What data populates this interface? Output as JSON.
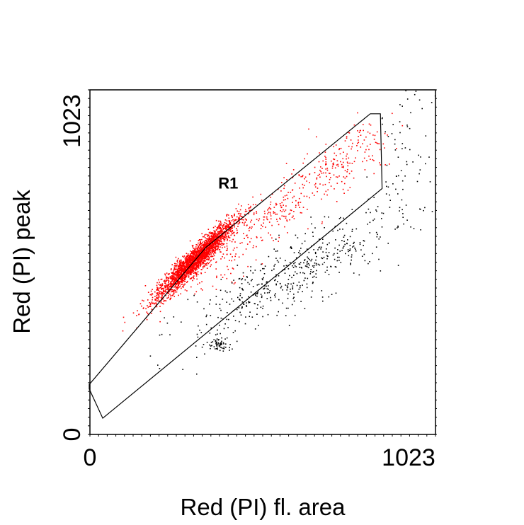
{
  "chart_data": {
    "type": "scatter",
    "title": "",
    "xlabel": "Red (PI) fl. area",
    "ylabel": "Red (PI) peak",
    "xlim": [
      0,
      1023
    ],
    "ylim": [
      0,
      1023
    ],
    "x_ticks": [
      "0",
      "1023"
    ],
    "y_ticks": [
      "0",
      "1023"
    ],
    "grid": false,
    "gate": {
      "name": "R1",
      "color": "#000000",
      "polygon": [
        [
          -2,
          135
        ],
        [
          38,
          48
        ],
        [
          865,
          730
        ],
        [
          860,
          952
        ],
        [
          830,
          952
        ],
        [
          343,
          555
        ],
        [
          -2,
          148
        ]
      ]
    },
    "series": [
      {
        "color": "#ff0000",
        "description_points": "events inside gate R1",
        "clusters": [
          {
            "center": [
              310,
              520
            ],
            "n": 2500,
            "along": [
              1.0,
              1.0
            ],
            "spread_along": 80,
            "spread_perp": 14
          },
          {
            "center": [
              540,
              650
            ],
            "n": 350,
            "along": [
              1.0,
              0.82
            ],
            "spread_along": 160,
            "spread_perp": 35
          },
          {
            "center": [
              770,
              820
            ],
            "n": 120,
            "along": [
              1.0,
              0.9
            ],
            "spread_along": 80,
            "spread_perp": 45
          }
        ]
      },
      {
        "color": "#000000",
        "description_points": "events outside gate",
        "clusters": [
          {
            "center": [
              380,
              272
            ],
            "n": 60,
            "along": [
              1.0,
              0.0
            ],
            "spread_along": 18,
            "spread_perp": 10
          },
          {
            "center": [
              590,
              470
            ],
            "n": 500,
            "along": [
              1.0,
              0.55
            ],
            "spread_along": 170,
            "spread_perp": 45
          },
          {
            "center": [
              930,
              820
            ],
            "n": 90,
            "along": [
              0.2,
              1.0
            ],
            "spread_along": 150,
            "spread_perp": 40
          }
        ]
      }
    ]
  }
}
